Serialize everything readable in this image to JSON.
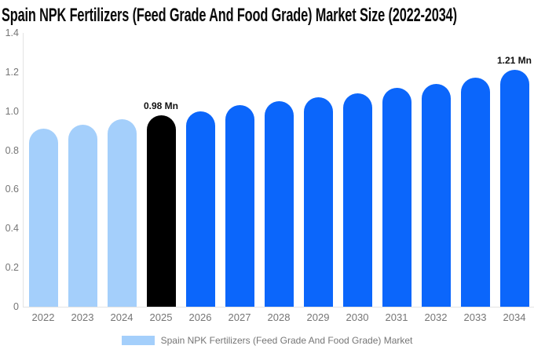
{
  "chart_data": {
    "type": "bar",
    "title": "Spain NPK Fertilizers (Feed Grade And Food Grade) Market Size (2022-2034)",
    "unit": "Mn",
    "categories": [
      "2022",
      "2023",
      "2024",
      "2025",
      "2026",
      "2027",
      "2028",
      "2029",
      "2030",
      "2031",
      "2032",
      "2033",
      "2034"
    ],
    "values": [
      0.91,
      0.93,
      0.96,
      0.98,
      1.0,
      1.03,
      1.05,
      1.07,
      1.09,
      1.12,
      1.14,
      1.17,
      1.21
    ],
    "bar_colors": [
      "#a4cffb",
      "#a4cffb",
      "#a4cffb",
      "#000000",
      "#0b66fb",
      "#0b66fb",
      "#0b66fb",
      "#0b66fb",
      "#0b66fb",
      "#0b66fb",
      "#0b66fb",
      "#0b66fb",
      "#0b66fb"
    ],
    "data_labels": [
      {
        "category": "2025",
        "text": "0.98 Mn"
      },
      {
        "category": "2034",
        "text": "1.21 Mn"
      }
    ],
    "ylim": [
      0,
      1.4
    ],
    "y_ticks": [
      {
        "label": "1.4",
        "value": 1.4
      },
      {
        "label": "1.2",
        "value": 1.2
      },
      {
        "label": "1.0",
        "value": 1.0
      },
      {
        "label": "0.8",
        "value": 0.8
      },
      {
        "label": "0.6",
        "value": 0.6
      },
      {
        "label": "0.4",
        "value": 0.4
      },
      {
        "label": "0.2",
        "value": 0.2
      },
      {
        "label": "0",
        "value": 0
      }
    ],
    "grid": false,
    "xlabel": "",
    "ylabel": "",
    "legend": {
      "position": "bottom",
      "items": [
        {
          "label": "Spain NPK Fertilizers (Feed Grade And Food Grade) Market",
          "swatch_color": "#a4cffb"
        }
      ]
    },
    "colors": {
      "historical_bar": "#a4cffb",
      "highlight_bar": "#000000",
      "forecast_bar": "#0b66fb",
      "axis_line": "#e3e3e3",
      "tick_text": "#757575",
      "data_label_text": "#111111",
      "title_text": "#0a0a0a"
    }
  }
}
